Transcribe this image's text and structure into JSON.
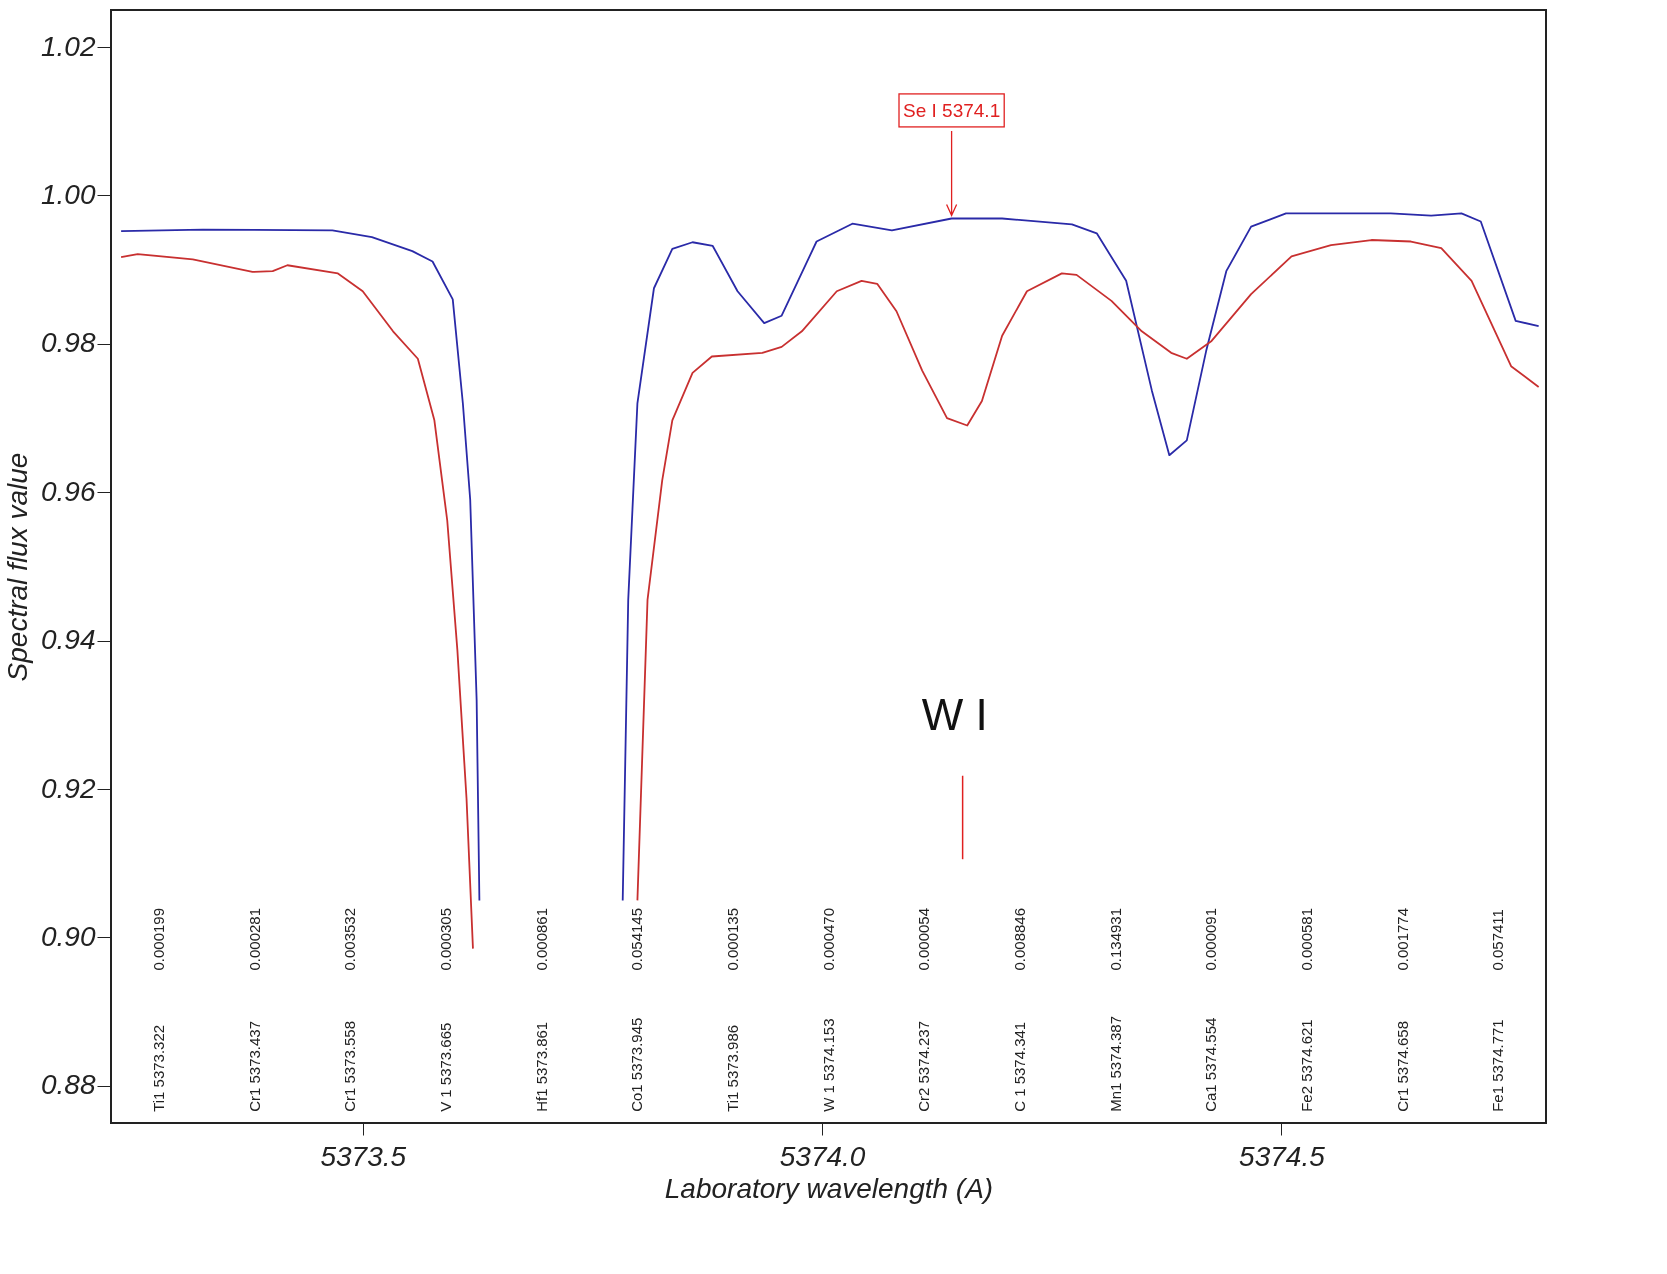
{
  "chart_data": {
    "type": "line",
    "xlabel": "Laboratory wavelength (A)",
    "ylabel": "Spectral flux value",
    "xlim": [
      5373.226,
      5374.788
    ],
    "ylim": [
      0.875,
      1.025
    ],
    "xticks": [
      5373.5,
      {
        "value": 5374,
        "label": "5374.0"
      },
      5374.5
    ],
    "yticks": [
      0.88,
      {
        "value": 0.9,
        "label": "0.90"
      },
      0.92,
      0.94,
      0.96,
      0.98,
      {
        "value": 1,
        "label": "1.00"
      },
      1.02
    ],
    "grid": false,
    "legend": false,
    "marker": "none",
    "line_style": "solid",
    "series": [
      {
        "color": "#2a2aa8",
        "x": [
          5373.237,
          5373.326,
          5373.467,
          5373.51,
          5373.554,
          5373.576,
          5373.598,
          5373.609,
          5373.617,
          5373.624,
          5373.627,
          5373.632,
          5373.7,
          5373.778,
          5373.783,
          5373.789,
          5373.799,
          5373.817,
          5373.837,
          5373.859,
          5373.881,
          5373.908,
          5373.937,
          5373.956,
          5373.994,
          5374.033,
          5374.076,
          5374.141,
          5374.196,
          5374.272,
          5374.299,
          5374.331,
          5374.359,
          5374.378,
          5374.397,
          5374.418,
          5374.44,
          5374.467,
          5374.505,
          5374.619,
          5374.663,
          5374.696,
          5374.717,
          5374.755,
          5374.78
        ],
        "values": [
          0.9952,
          0.9954,
          0.9953,
          0.9944,
          0.9925,
          0.9911,
          0.986,
          0.972,
          0.959,
          0.932,
          0.905,
          null,
          null,
          null,
          0.905,
          0.9455,
          0.972,
          0.9875,
          0.9928,
          0.9937,
          0.9932,
          0.9871,
          0.9828,
          0.9838,
          0.9938,
          0.9962,
          0.9953,
          0.9969,
          0.9969,
          0.9961,
          0.9949,
          0.9885,
          0.9737,
          0.965,
          0.967,
          0.979,
          0.9898,
          0.9958,
          0.9976,
          0.9976,
          0.9973,
          0.9976,
          0.9965,
          0.9831,
          0.9824
        ]
      },
      {
        "color": "#c83030",
        "x": [
          5373.237,
          5373.255,
          5373.315,
          5373.38,
          5373.402,
          5373.418,
          5373.473,
          5373.5,
          5373.533,
          5373.56,
          5373.578,
          5373.592,
          5373.603,
          5373.613,
          5373.62,
          5373.628,
          5373.7,
          5373.793,
          5373.799,
          5373.81,
          5373.826,
          5373.837,
          5373.859,
          5373.88,
          5373.935,
          5373.956,
          5373.978,
          5374.016,
          5374.043,
          5374.06,
          5374.081,
          5374.109,
          5374.136,
          5374.158,
          5374.174,
          5374.196,
          5374.223,
          5374.261,
          5374.277,
          5374.315,
          5374.348,
          5374.38,
          5374.397,
          5374.424,
          5374.467,
          5374.511,
          5374.554,
          5374.598,
          5374.641,
          5374.674,
          5374.707,
          5374.75,
          5374.78
        ],
        "values": [
          0.9917,
          0.9921,
          0.9914,
          0.9897,
          0.9898,
          0.9906,
          0.9895,
          0.9871,
          0.9817,
          0.978,
          0.9697,
          0.9562,
          0.9388,
          0.9187,
          0.8985,
          null,
          null,
          null,
          0.905,
          0.9455,
          0.9616,
          0.9697,
          0.9761,
          0.9783,
          0.9788,
          0.9796,
          0.9817,
          0.9871,
          0.9885,
          0.9881,
          0.9844,
          0.9764,
          0.97,
          0.969,
          0.9723,
          0.9811,
          0.9871,
          0.9895,
          0.9893,
          0.9858,
          0.9817,
          0.9788,
          0.978,
          0.9804,
          0.9867,
          0.9918,
          0.9933,
          0.994,
          0.9938,
          0.9929,
          0.9885,
          0.977,
          0.9742
        ]
      }
    ],
    "annotations": [
      {
        "text": "Se I 5374.1",
        "x": 5374.141,
        "y": 0.9969
      },
      "Ti1 5373.322",
      "0.000199",
      "Cr1 5373.437",
      "0.000281",
      "Cr1 5373.558",
      "0.003532",
      "V 1 5373.665",
      "0.000305",
      "Hf1 5373.861",
      "0.000861",
      "Co1 5373.945",
      "0.054145",
      "Ti1 5373.986",
      "0.000135",
      "W 1 5374.153",
      "0.000470",
      "Cr2 5374.237",
      "0.000054",
      "C 1 5374.341",
      "0.008846",
      "Mn1 5374.387",
      "0.134931",
      "Ca1 5374.554",
      "0.000091",
      "Fe2 5374.621",
      "0.000581",
      "Cr1 5374.658",
      "0.001774",
      "Fe1 5374.771",
      "0.057411"
    ],
    "ref_lines": [
      {
        "axis": "x",
        "value": 5374.153,
        "label": "W I",
        "color": "#e02020"
      }
    ]
  }
}
